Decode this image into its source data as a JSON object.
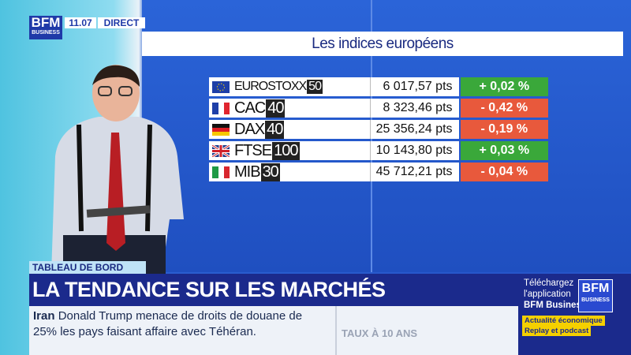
{
  "logo": {
    "brand": "BFM",
    "sub": "BUSINESS"
  },
  "clock": "11.07",
  "live": "DIRECT",
  "panel": {
    "title": "Les indices européens",
    "rows": [
      {
        "name": "EUROSTOXX",
        "suffix": "50",
        "value": "6 017,57 pts",
        "change": "+ 0,02 %",
        "color": "#3aa83a"
      },
      {
        "name": "CAC",
        "suffix": "40",
        "value": "8 323,46 pts",
        "change": "- 0,42 %",
        "color": "#e8593c"
      },
      {
        "name": "DAX",
        "suffix": "40",
        "value": "25 356,24 pts",
        "change": "- 0,19 %",
        "color": "#e8593c"
      },
      {
        "name": "FTSE",
        "suffix": "100",
        "value": "10 143,80 pts",
        "change": "+ 0,03 %",
        "color": "#3aa83a"
      },
      {
        "name": "MIB",
        "suffix": "30",
        "value": "45 712,21 pts",
        "change": "- 0,04 %",
        "color": "#e8593c"
      }
    ]
  },
  "banner": {
    "tag": "TABLEAU DE BORD",
    "headline": "LA TENDANCE SUR LES MARCHÉS"
  },
  "ticker": {
    "topic": "Iran",
    "text": "Donald Trump menace de droits de douane de 25% les pays faisant affaire avec Téhéran.",
    "next": "TAUX À 10 ANS"
  },
  "promo": {
    "line1": "Téléchargez",
    "line2": "l'application",
    "line3": "BFM Business",
    "tag1": "Actualité économique",
    "tag2": "Replay et podcast",
    "logo_brand": "BFM",
    "logo_sub": "BUSINESS"
  }
}
